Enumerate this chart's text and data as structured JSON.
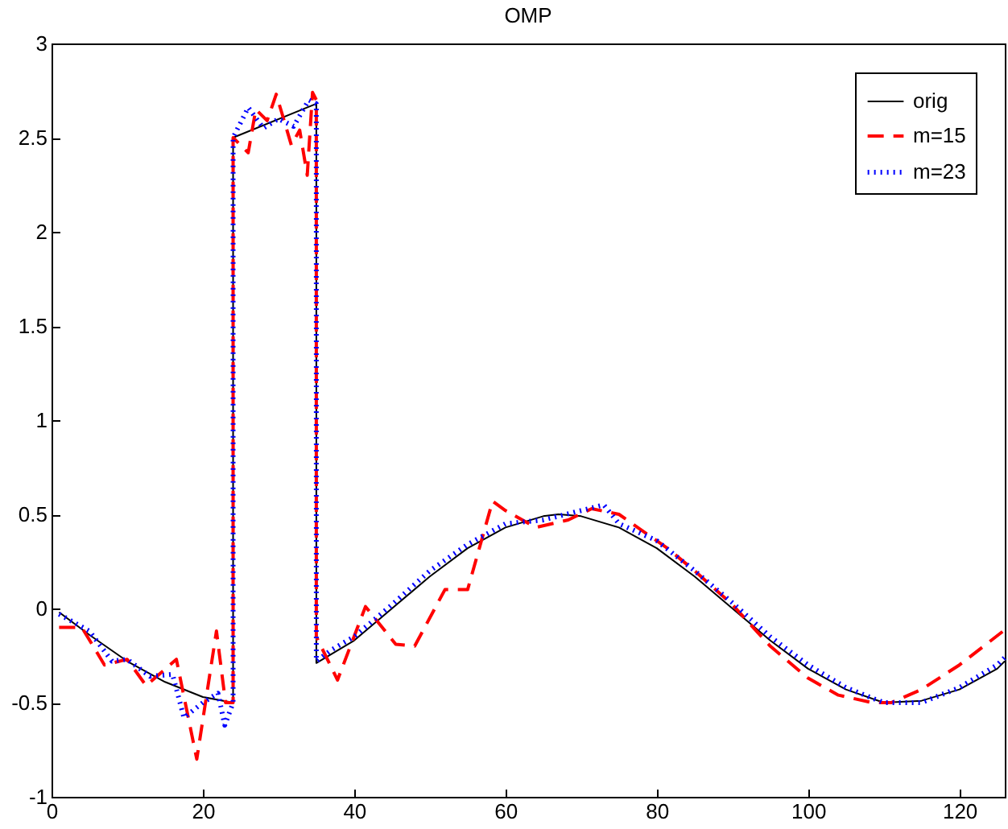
{
  "chart_data": {
    "type": "line",
    "title": "OMP",
    "xlim": [
      0,
      126
    ],
    "xticks": [
      0,
      20,
      40,
      60,
      80,
      100,
      120
    ],
    "ylim": [
      -1,
      3
    ],
    "yticks": [
      -1,
      -0.5,
      0,
      0.5,
      1,
      1.5,
      2,
      2.5,
      3
    ],
    "grid": false,
    "legend": "top right",
    "series": [
      {
        "name": "orig",
        "color": "#000000",
        "line_style": "solid",
        "x": [
          1,
          5,
          10,
          15,
          20,
          24,
          24,
          35,
          35,
          40,
          45,
          50,
          55,
          60,
          65,
          67,
          70,
          75,
          80,
          85,
          90,
          95,
          100,
          105,
          110,
          115,
          120,
          125,
          126
        ],
        "values": [
          -0.02,
          -0.14,
          -0.28,
          -0.39,
          -0.47,
          -0.5,
          2.5,
          2.68,
          -0.29,
          -0.17,
          0,
          0.17,
          0.32,
          0.43,
          0.49,
          0.5,
          0.49,
          0.43,
          0.32,
          0.17,
          0,
          -0.17,
          -0.32,
          -0.43,
          -0.5,
          -0.49,
          -0.43,
          -0.32,
          -0.28
        ]
      },
      {
        "name": "m=15",
        "color": "#ff0000",
        "line_style": "dashed",
        "x": [
          1,
          4,
          7,
          10,
          12.5,
          16.5,
          19.2,
          21.8,
          23,
          24,
          24,
          26,
          27,
          28.5,
          29.7,
          30.6,
          31.7,
          32.8,
          33.8,
          34.5,
          35,
          35,
          37.8,
          41.5,
          45.5,
          48,
          52,
          55,
          58.3,
          60,
          64,
          68.3,
          71.4,
          75,
          81.4,
          85,
          90,
          95,
          100,
          104,
          108.5,
          111,
          115,
          120,
          125.8
        ],
        "values": [
          -0.1,
          -0.1,
          -0.3,
          -0.27,
          -0.41,
          -0.27,
          -0.8,
          -0.12,
          -0.5,
          -0.5,
          2.5,
          2.42,
          2.65,
          2.59,
          2.73,
          2.61,
          2.46,
          2.54,
          2.3,
          2.74,
          2.7,
          -0.15,
          -0.38,
          0.01,
          -0.19,
          -0.2,
          0.1,
          0.1,
          0.57,
          0.52,
          0.43,
          0.47,
          0.53,
          0.5,
          0.32,
          0.2,
          0.02,
          -0.2,
          -0.37,
          -0.46,
          -0.5,
          -0.5,
          -0.43,
          -0.3,
          -0.12
        ]
      },
      {
        "name": "m=23",
        "color": "#0000ff",
        "line_style": "dotted",
        "x": [
          1,
          5,
          8,
          10,
          13,
          16,
          17.5,
          20,
          22,
          22.9,
          24,
          24,
          26,
          28,
          30,
          32,
          34,
          35,
          35,
          37,
          40,
          45,
          50,
          55,
          60,
          65,
          70,
          73,
          75,
          80,
          85,
          90,
          95,
          100,
          105,
          110,
          115,
          120,
          125,
          126
        ],
        "values": [
          -0.03,
          -0.12,
          -0.28,
          -0.27,
          -0.36,
          -0.35,
          -0.58,
          -0.5,
          -0.45,
          -0.62,
          -0.5,
          2.5,
          2.66,
          2.55,
          2.6,
          2.56,
          2.7,
          2.68,
          -0.28,
          -0.22,
          -0.15,
          0.02,
          0.2,
          0.34,
          0.45,
          0.47,
          0.52,
          0.55,
          0.45,
          0.36,
          0.2,
          0.03,
          -0.15,
          -0.3,
          -0.42,
          -0.5,
          -0.5,
          -0.42,
          -0.3,
          -0.26
        ]
      }
    ]
  }
}
